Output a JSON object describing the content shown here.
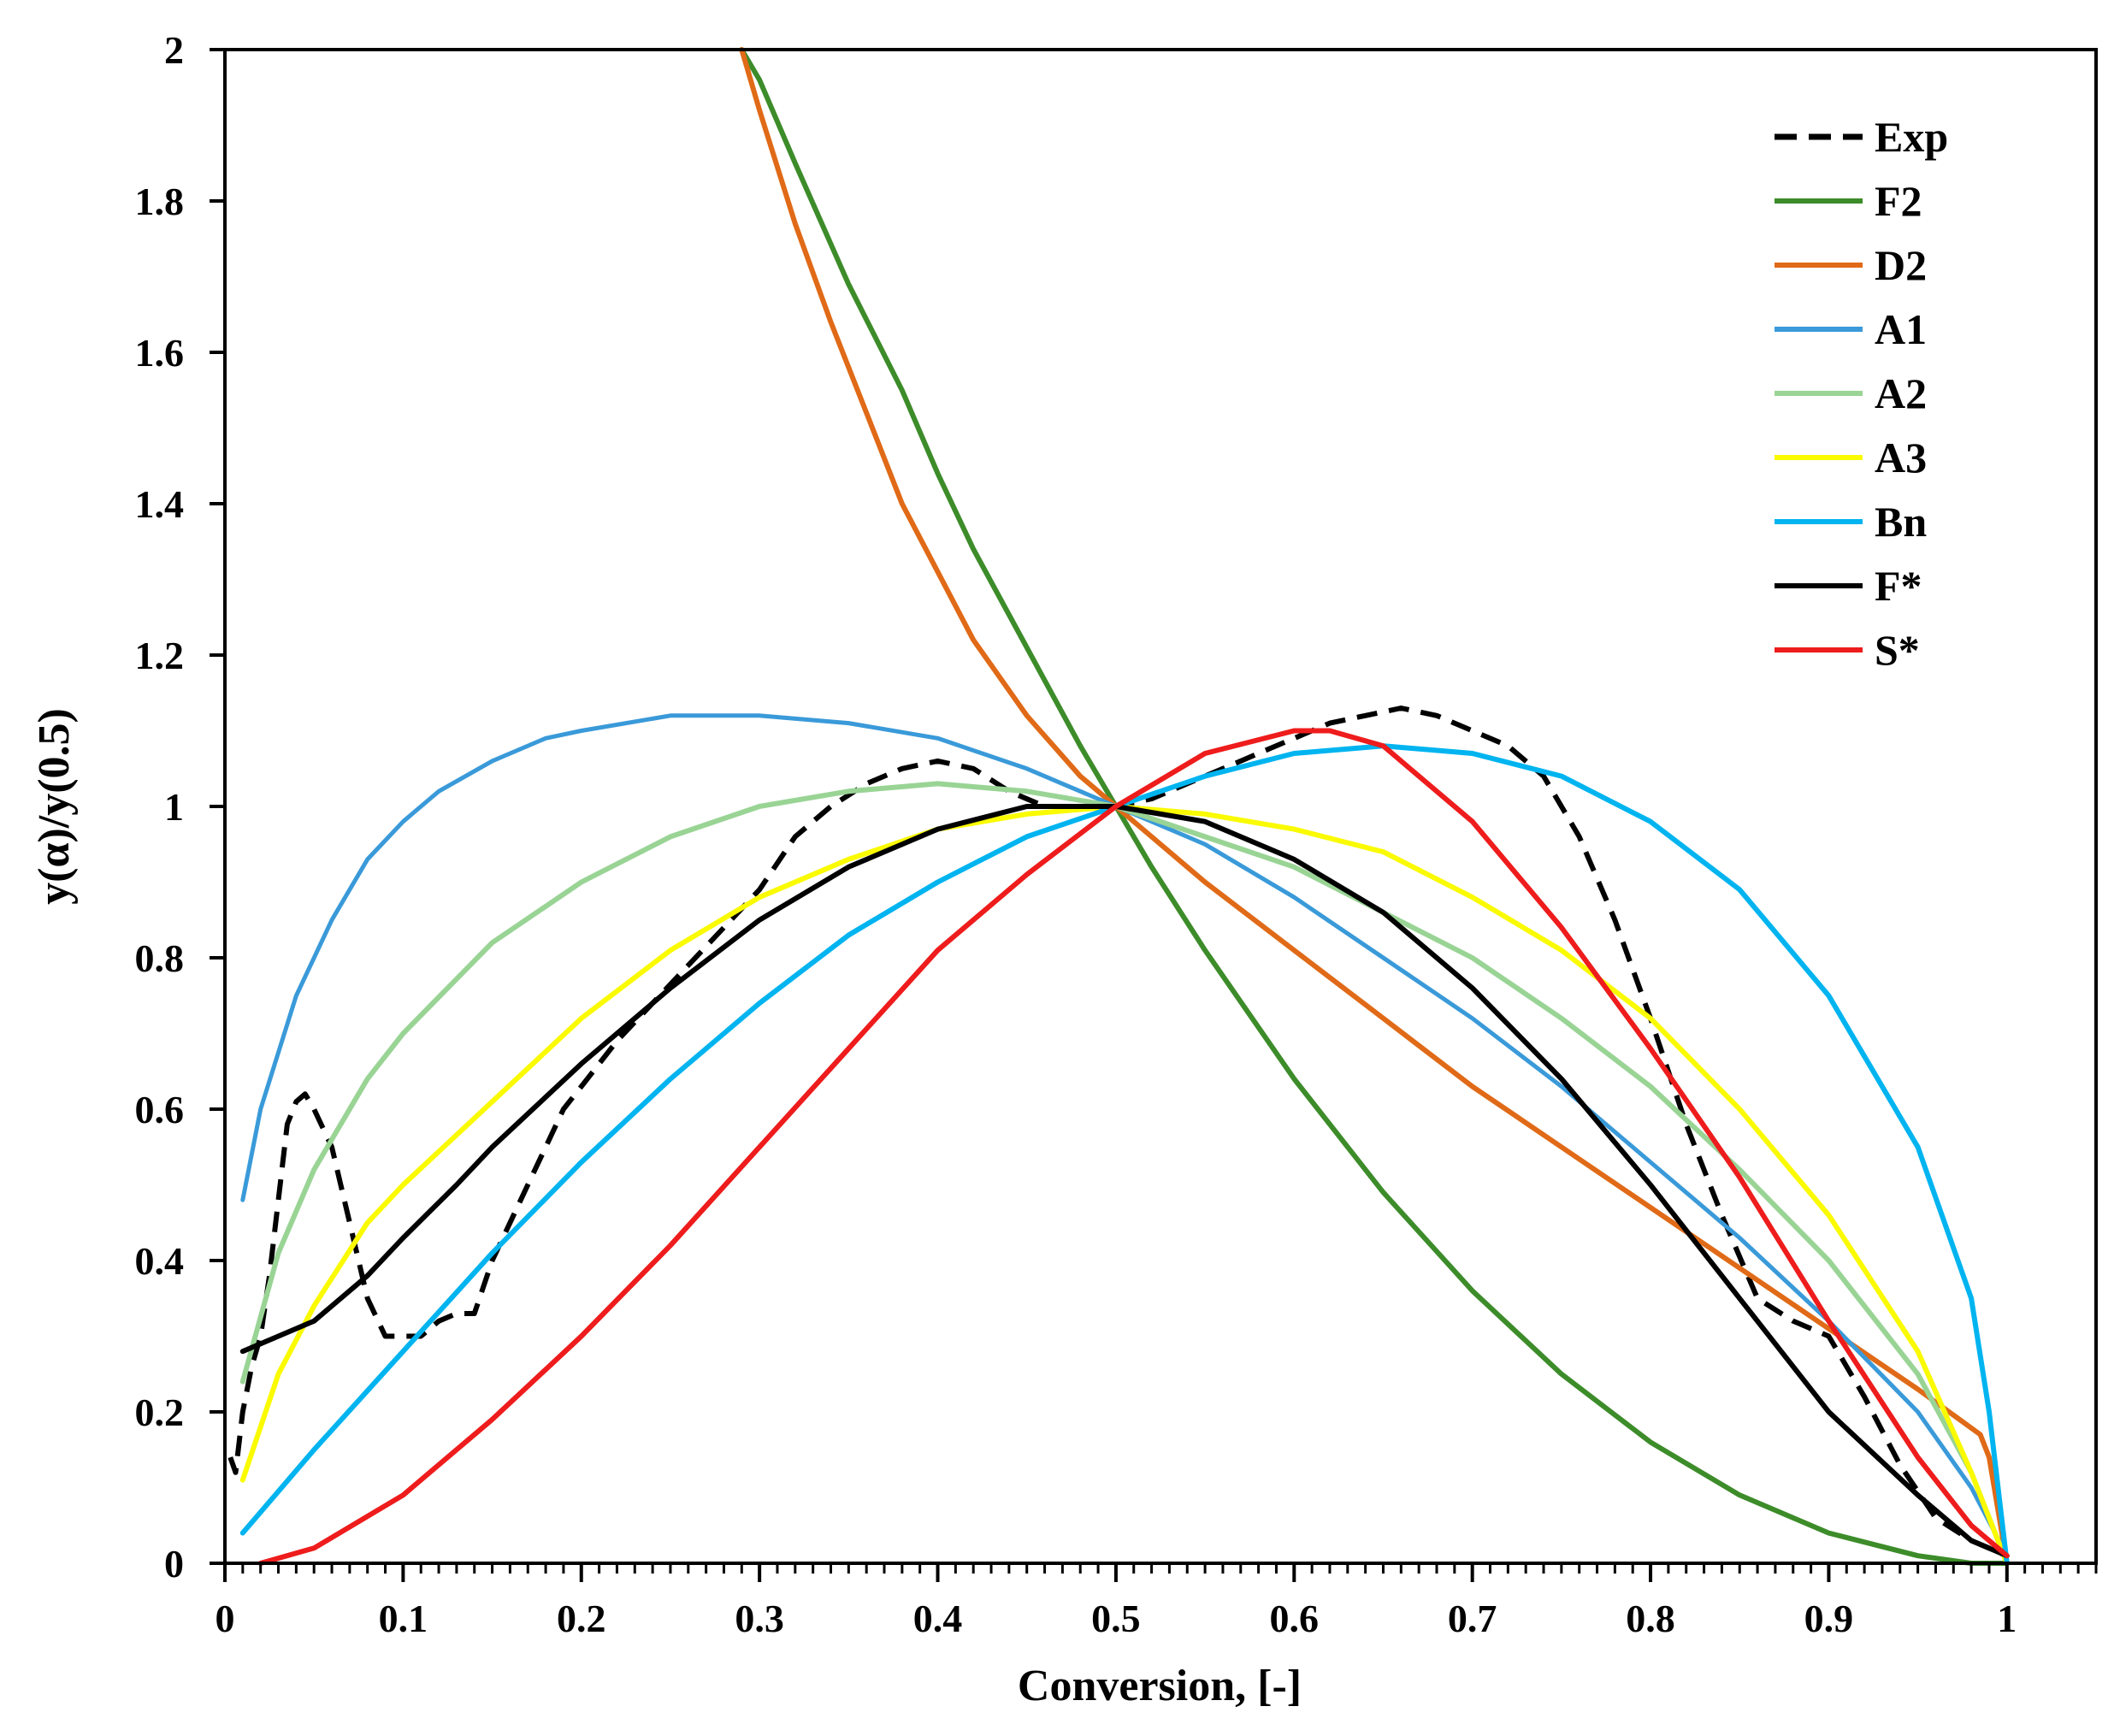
{
  "chart_data": {
    "type": "line",
    "title": "",
    "xlabel": "Conversion, [-]",
    "ylabel": "y(α)/y(0.5)",
    "xlim": [
      0,
      1.05
    ],
    "ylim": [
      0,
      2
    ],
    "xticks": [
      0,
      0.1,
      0.2,
      0.3,
      0.4,
      0.5,
      0.6,
      0.7,
      0.8,
      0.9,
      1
    ],
    "xtick_labels": [
      "0",
      "0.1",
      "0.2",
      "0.3",
      "0.4",
      "0.5",
      "0.6",
      "0.7",
      "0.8",
      "0.9",
      "1"
    ],
    "yticks": [
      0,
      0.2,
      0.4,
      0.6,
      0.8,
      1,
      1.2,
      1.4,
      1.6,
      1.8,
      2
    ],
    "ytick_labels": [
      "0",
      "0.2",
      "0.4",
      "0.6",
      "0.8",
      "1",
      "1.2",
      "1.4",
      "1.6",
      "1.8",
      "2"
    ],
    "legend_position": "top-right",
    "grid": false,
    "series": [
      {
        "name": "Exp",
        "color": "#000000",
        "dashed": true,
        "width": 6,
        "x": [
          0.003,
          0.006,
          0.01,
          0.015,
          0.02,
          0.025,
          0.03,
          0.035,
          0.04,
          0.045,
          0.05,
          0.06,
          0.07,
          0.08,
          0.09,
          0.1,
          0.11,
          0.12,
          0.13,
          0.14,
          0.15,
          0.16,
          0.17,
          0.18,
          0.19,
          0.2,
          0.22,
          0.24,
          0.26,
          0.28,
          0.3,
          0.32,
          0.34,
          0.36,
          0.38,
          0.4,
          0.42,
          0.44,
          0.46,
          0.48,
          0.5,
          0.52,
          0.54,
          0.56,
          0.58,
          0.6,
          0.62,
          0.64,
          0.66,
          0.68,
          0.7,
          0.72,
          0.74,
          0.76,
          0.78,
          0.8,
          0.82,
          0.84,
          0.86,
          0.88,
          0.9,
          0.92,
          0.94,
          0.96,
          0.98,
          0.99,
          1.0
        ],
        "y": [
          0.14,
          0.12,
          0.2,
          0.26,
          0.3,
          0.38,
          0.48,
          0.58,
          0.61,
          0.62,
          0.6,
          0.55,
          0.45,
          0.35,
          0.3,
          0.3,
          0.3,
          0.32,
          0.33,
          0.33,
          0.4,
          0.45,
          0.5,
          0.55,
          0.6,
          0.63,
          0.69,
          0.74,
          0.79,
          0.84,
          0.89,
          0.96,
          1.0,
          1.03,
          1.05,
          1.06,
          1.05,
          1.02,
          1.0,
          1.0,
          1.0,
          1.01,
          1.03,
          1.05,
          1.07,
          1.09,
          1.11,
          1.12,
          1.13,
          1.12,
          1.1,
          1.08,
          1.04,
          0.96,
          0.85,
          0.72,
          0.58,
          0.46,
          0.35,
          0.32,
          0.3,
          0.22,
          0.13,
          0.06,
          0.03,
          0.02,
          0.01
        ]
      },
      {
        "name": "F2",
        "color": "#3d8c2a",
        "dashed": false,
        "width": 6,
        "x": [
          0.29,
          0.3,
          0.32,
          0.35,
          0.38,
          0.4,
          0.42,
          0.45,
          0.48,
          0.5,
          0.52,
          0.55,
          0.6,
          0.65,
          0.7,
          0.75,
          0.8,
          0.85,
          0.9,
          0.95,
          0.98,
          1.0
        ],
        "y": [
          2.0,
          1.96,
          1.85,
          1.69,
          1.55,
          1.44,
          1.34,
          1.21,
          1.08,
          1.0,
          0.92,
          0.81,
          0.64,
          0.49,
          0.36,
          0.25,
          0.16,
          0.09,
          0.04,
          0.01,
          0.0,
          0.0
        ]
      },
      {
        "name": "D2",
        "color": "#e06a17",
        "dashed": false,
        "width": 6,
        "x": [
          0.29,
          0.3,
          0.32,
          0.34,
          0.36,
          0.38,
          0.4,
          0.42,
          0.45,
          0.48,
          0.5,
          0.52,
          0.55,
          0.6,
          0.65,
          0.7,
          0.75,
          0.8,
          0.85,
          0.9,
          0.95,
          0.985,
          0.99,
          1.0
        ],
        "y": [
          2.0,
          1.92,
          1.77,
          1.64,
          1.52,
          1.4,
          1.31,
          1.22,
          1.12,
          1.04,
          1.0,
          0.96,
          0.9,
          0.81,
          0.72,
          0.63,
          0.55,
          0.47,
          0.39,
          0.31,
          0.23,
          0.17,
          0.14,
          0.0
        ]
      },
      {
        "name": "A1",
        "color": "#3a9ad9",
        "dashed": false,
        "width": 5,
        "x": [
          0.01,
          0.02,
          0.04,
          0.06,
          0.08,
          0.1,
          0.12,
          0.15,
          0.18,
          0.2,
          0.25,
          0.28,
          0.3,
          0.35,
          0.4,
          0.45,
          0.5,
          0.55,
          0.6,
          0.65,
          0.7,
          0.75,
          0.8,
          0.85,
          0.9,
          0.95,
          0.98,
          1.0
        ],
        "y": [
          0.48,
          0.6,
          0.75,
          0.85,
          0.93,
          0.98,
          1.02,
          1.06,
          1.09,
          1.1,
          1.12,
          1.12,
          1.12,
          1.11,
          1.09,
          1.05,
          1.0,
          0.95,
          0.88,
          0.8,
          0.72,
          0.63,
          0.53,
          0.43,
          0.32,
          0.2,
          0.1,
          0.01
        ]
      },
      {
        "name": "A2",
        "color": "#99d495",
        "dashed": false,
        "width": 6,
        "x": [
          0.01,
          0.03,
          0.05,
          0.08,
          0.1,
          0.15,
          0.2,
          0.25,
          0.3,
          0.35,
          0.4,
          0.45,
          0.5,
          0.55,
          0.6,
          0.65,
          0.7,
          0.75,
          0.8,
          0.85,
          0.9,
          0.95,
          0.98,
          1.0
        ],
        "y": [
          0.24,
          0.41,
          0.52,
          0.64,
          0.7,
          0.82,
          0.9,
          0.96,
          1.0,
          1.02,
          1.03,
          1.02,
          1.0,
          0.96,
          0.92,
          0.86,
          0.8,
          0.72,
          0.63,
          0.52,
          0.4,
          0.25,
          0.12,
          0.0
        ]
      },
      {
        "name": "A3",
        "color": "#fafa00",
        "dashed": false,
        "width": 6,
        "x": [
          0.01,
          0.03,
          0.05,
          0.08,
          0.1,
          0.15,
          0.2,
          0.25,
          0.3,
          0.35,
          0.4,
          0.45,
          0.5,
          0.55,
          0.6,
          0.65,
          0.7,
          0.75,
          0.8,
          0.85,
          0.9,
          0.95,
          0.98,
          1.0
        ],
        "y": [
          0.11,
          0.25,
          0.34,
          0.45,
          0.5,
          0.61,
          0.72,
          0.81,
          0.88,
          0.93,
          0.97,
          0.99,
          1.0,
          0.99,
          0.97,
          0.94,
          0.88,
          0.81,
          0.72,
          0.6,
          0.46,
          0.28,
          0.12,
          0.0
        ]
      },
      {
        "name": "Bn",
        "color": "#00b4f0",
        "dashed": false,
        "width": 6,
        "x": [
          0.01,
          0.05,
          0.1,
          0.15,
          0.2,
          0.25,
          0.3,
          0.35,
          0.4,
          0.45,
          0.5,
          0.55,
          0.6,
          0.65,
          0.7,
          0.75,
          0.8,
          0.85,
          0.9,
          0.95,
          0.98,
          0.99,
          1.0
        ],
        "y": [
          0.04,
          0.15,
          0.28,
          0.41,
          0.53,
          0.64,
          0.74,
          0.83,
          0.9,
          0.96,
          1.0,
          1.04,
          1.07,
          1.08,
          1.07,
          1.04,
          0.98,
          0.89,
          0.75,
          0.55,
          0.35,
          0.2,
          0.0
        ]
      },
      {
        "name": "F*",
        "color": "#000000",
        "dashed": false,
        "width": 6,
        "x": [
          0.01,
          0.05,
          0.08,
          0.1,
          0.13,
          0.15,
          0.2,
          0.25,
          0.3,
          0.35,
          0.4,
          0.45,
          0.5,
          0.55,
          0.6,
          0.65,
          0.7,
          0.75,
          0.8,
          0.85,
          0.9,
          0.95,
          0.98,
          1.0
        ],
        "y": [
          0.28,
          0.32,
          0.38,
          0.43,
          0.5,
          0.55,
          0.66,
          0.76,
          0.85,
          0.92,
          0.97,
          1.0,
          1.0,
          0.98,
          0.93,
          0.86,
          0.76,
          0.64,
          0.5,
          0.35,
          0.2,
          0.09,
          0.03,
          0.01
        ]
      },
      {
        "name": "S*",
        "color": "#ee1c1c",
        "dashed": false,
        "width": 6,
        "x": [
          0.02,
          0.05,
          0.1,
          0.15,
          0.2,
          0.25,
          0.3,
          0.35,
          0.4,
          0.45,
          0.5,
          0.55,
          0.6,
          0.62,
          0.65,
          0.7,
          0.75,
          0.8,
          0.85,
          0.9,
          0.95,
          0.98,
          1.0
        ],
        "y": [
          0.0,
          0.02,
          0.09,
          0.19,
          0.3,
          0.42,
          0.55,
          0.68,
          0.81,
          0.91,
          1.0,
          1.07,
          1.1,
          1.1,
          1.08,
          0.98,
          0.84,
          0.68,
          0.51,
          0.32,
          0.14,
          0.05,
          0.01
        ]
      }
    ]
  }
}
